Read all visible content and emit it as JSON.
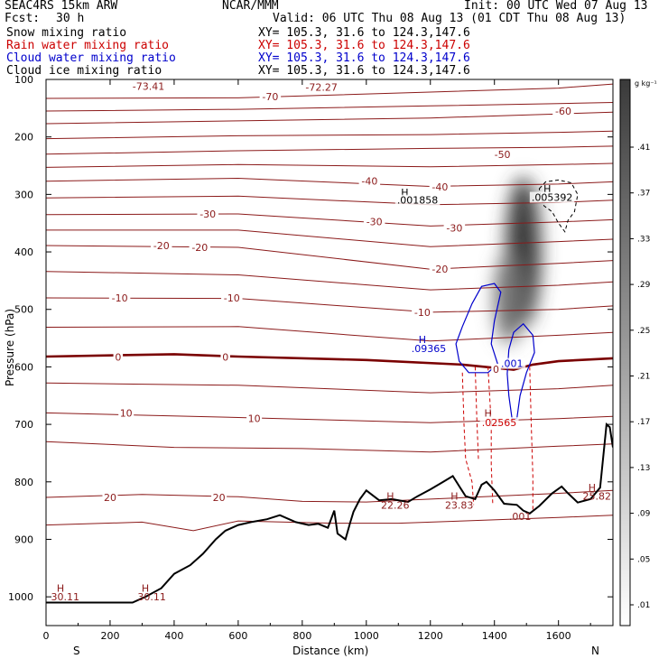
{
  "header": {
    "model": "SEAC4RS 15km ARW",
    "source": "NCAR/MMM",
    "init": "Init: 00 UTC Wed 07 Aug 13",
    "fcst_label": "Fcst:",
    "fcst_value": "30 h",
    "valid": "Valid: 06 UTC Thu 08 Aug 13 (01 CDT Thu 08 Aug 13)"
  },
  "legend": [
    {
      "name": "Snow mixing ratio",
      "xy": "XY= 105.3, 31.6 to 124.3,147.6",
      "color": "#000000"
    },
    {
      "name": "Rain water mixing ratio",
      "xy": "XY= 105.3, 31.6 to 124.3,147.6",
      "color": "#cc0000"
    },
    {
      "name": "Cloud water mixing ratio",
      "xy": "XY= 105.3, 31.6 to 124.3,147.6",
      "color": "#0000cc"
    },
    {
      "name": "Cloud ice mixing ratio",
      "xy": "XY= 105.3, 31.6 to 124.3,147.6",
      "color": "#000000"
    }
  ],
  "colors": {
    "temperature_contour": "#8b1a1a",
    "zero_isotherm": "#7a0000",
    "rain": "#cc0000",
    "cloud_water": "#0000cc",
    "terrain": "#000000"
  },
  "chart_data": {
    "type": "heatmap",
    "xlabel": "Distance (km)",
    "ylabel": "Pressure (hPa)",
    "xlim": [
      0,
      1770
    ],
    "ylim": [
      1050,
      100
    ],
    "x_ticks": [
      0,
      200,
      400,
      600,
      800,
      1000,
      1200,
      1400,
      1600
    ],
    "y_ticks": [
      100,
      200,
      300,
      400,
      500,
      600,
      700,
      800,
      900,
      1000
    ],
    "left_end_label": "S",
    "right_end_label": "N",
    "colorbar": {
      "unit": "g kg⁻¹",
      "ticks": [
        ".41",
        ".37",
        ".33",
        ".29",
        ".25",
        ".21",
        ".17",
        ".13",
        ".09",
        ".05",
        ".01"
      ],
      "max_value": 0.43
    },
    "temperature_labels": [
      {
        "text": "-73.41",
        "x": 320,
        "p": 112
      },
      {
        "text": "-72.27",
        "x": 860,
        "p": 113
      },
      {
        "text": "-70",
        "x": 700,
        "p": 130
      },
      {
        "text": "-60",
        "x": 1615,
        "p": 155
      },
      {
        "text": "-50",
        "x": 1425,
        "p": 230
      },
      {
        "text": "-40",
        "x": 1010,
        "p": 277
      },
      {
        "text": "-40",
        "x": 1230,
        "p": 287
      },
      {
        "text": "-30",
        "x": 505,
        "p": 334
      },
      {
        "text": "-30",
        "x": 1025,
        "p": 347
      },
      {
        "text": "-30",
        "x": 1275,
        "p": 358
      },
      {
        "text": "-20",
        "x": 360,
        "p": 389
      },
      {
        "text": "-20",
        "x": 480,
        "p": 392
      },
      {
        "text": "-20",
        "x": 1230,
        "p": 430
      },
      {
        "text": "-10",
        "x": 230,
        "p": 480
      },
      {
        "text": "-10",
        "x": 580,
        "p": 480
      },
      {
        "text": "-10",
        "x": 1175,
        "p": 505
      },
      {
        "text": "0",
        "x": 225,
        "p": 583
      },
      {
        "text": "0",
        "x": 560,
        "p": 583
      },
      {
        "text": "0",
        "x": 1405,
        "p": 604
      },
      {
        "text": "10",
        "x": 250,
        "p": 680
      },
      {
        "text": "10",
        "x": 650,
        "p": 690
      },
      {
        "text": "10",
        "x": 1400,
        "p": 697
      },
      {
        "text": "20",
        "x": 200,
        "p": 827
      },
      {
        "text": "20",
        "x": 540,
        "p": 827
      }
    ],
    "temperature_contours": [
      {
        "label": -70,
        "pts": [
          [
            0,
            133
          ],
          [
            600,
            132
          ],
          [
            1200,
            122
          ],
          [
            1600,
            115
          ],
          [
            1770,
            108
          ]
        ]
      },
      {
        "label": -65,
        "pts": [
          [
            0,
            155
          ],
          [
            600,
            152
          ],
          [
            1200,
            146
          ],
          [
            1600,
            142
          ],
          [
            1770,
            140
          ]
        ]
      },
      {
        "label": -60,
        "pts": [
          [
            0,
            177
          ],
          [
            600,
            172
          ],
          [
            1200,
            167
          ],
          [
            1600,
            160
          ],
          [
            1770,
            157
          ]
        ]
      },
      {
        "label": -55,
        "pts": [
          [
            0,
            203
          ],
          [
            600,
            198
          ],
          [
            1200,
            196
          ],
          [
            1600,
            192
          ],
          [
            1770,
            190
          ]
        ]
      },
      {
        "label": -50,
        "pts": [
          [
            0,
            230
          ],
          [
            600,
            224
          ],
          [
            1200,
            220
          ],
          [
            1600,
            218
          ],
          [
            1770,
            216
          ]
        ]
      },
      {
        "label": -45,
        "pts": [
          [
            0,
            253
          ],
          [
            600,
            248
          ],
          [
            1200,
            252
          ],
          [
            1600,
            248
          ],
          [
            1770,
            246
          ]
        ]
      },
      {
        "label": -40,
        "pts": [
          [
            0,
            277
          ],
          [
            600,
            272
          ],
          [
            1200,
            286
          ],
          [
            1600,
            282
          ],
          [
            1770,
            278
          ]
        ]
      },
      {
        "label": -35,
        "pts": [
          [
            0,
            306
          ],
          [
            600,
            303
          ],
          [
            1200,
            318
          ],
          [
            1600,
            314
          ],
          [
            1770,
            310
          ]
        ]
      },
      {
        "label": -30,
        "pts": [
          [
            0,
            335
          ],
          [
            600,
            334
          ],
          [
            1200,
            355
          ],
          [
            1600,
            348
          ],
          [
            1770,
            344
          ]
        ]
      },
      {
        "label": -25,
        "pts": [
          [
            0,
            362
          ],
          [
            600,
            362
          ],
          [
            1200,
            391
          ],
          [
            1600,
            382
          ],
          [
            1770,
            378
          ]
        ]
      },
      {
        "label": -20,
        "pts": [
          [
            0,
            389
          ],
          [
            600,
            392
          ],
          [
            1200,
            430
          ],
          [
            1600,
            420
          ],
          [
            1770,
            415
          ]
        ]
      },
      {
        "label": -15,
        "pts": [
          [
            0,
            434
          ],
          [
            600,
            440
          ],
          [
            1200,
            466
          ],
          [
            1600,
            458
          ],
          [
            1770,
            452
          ]
        ]
      },
      {
        "label": -10,
        "pts": [
          [
            0,
            480
          ],
          [
            600,
            481
          ],
          [
            1200,
            505
          ],
          [
            1600,
            500
          ],
          [
            1770,
            494
          ]
        ]
      },
      {
        "label": -5,
        "pts": [
          [
            0,
            531
          ],
          [
            600,
            530
          ],
          [
            1200,
            555
          ],
          [
            1600,
            545
          ],
          [
            1770,
            540
          ]
        ]
      },
      {
        "label": 0,
        "pts": [
          [
            0,
            582
          ],
          [
            400,
            578
          ],
          [
            600,
            582
          ],
          [
            1000,
            588
          ],
          [
            1300,
            596
          ],
          [
            1460,
            605
          ],
          [
            1520,
            596
          ],
          [
            1600,
            590
          ],
          [
            1770,
            585
          ]
        ]
      },
      {
        "label": 5,
        "pts": [
          [
            0,
            628
          ],
          [
            600,
            632
          ],
          [
            1200,
            645
          ],
          [
            1600,
            638
          ],
          [
            1770,
            632
          ]
        ]
      },
      {
        "label": 10,
        "pts": [
          [
            0,
            680
          ],
          [
            600,
            688
          ],
          [
            1200,
            697
          ],
          [
            1600,
            690
          ],
          [
            1770,
            686
          ]
        ]
      },
      {
        "label": 15,
        "pts": [
          [
            0,
            730
          ],
          [
            400,
            740
          ],
          [
            800,
            742
          ],
          [
            1200,
            748
          ],
          [
            1600,
            738
          ],
          [
            1770,
            734
          ]
        ]
      },
      {
        "label": 20,
        "pts": [
          [
            0,
            827
          ],
          [
            300,
            822
          ],
          [
            600,
            826
          ],
          [
            800,
            834
          ],
          [
            1000,
            835
          ],
          [
            1200,
            830
          ],
          [
            1600,
            820
          ],
          [
            1770,
            815
          ]
        ]
      },
      {
        "label": 25,
        "pts": [
          [
            0,
            875
          ],
          [
            300,
            870
          ],
          [
            460,
            885
          ],
          [
            600,
            868
          ],
          [
            900,
            872
          ],
          [
            1100,
            872
          ],
          [
            1300,
            868
          ],
          [
            1600,
            862
          ],
          [
            1770,
            858
          ]
        ]
      }
    ],
    "terrain": [
      [
        0,
        1010
      ],
      [
        270,
        1010
      ],
      [
        310,
        1000
      ],
      [
        360,
        985
      ],
      [
        400,
        960
      ],
      [
        450,
        945
      ],
      [
        490,
        925
      ],
      [
        530,
        900
      ],
      [
        560,
        885
      ],
      [
        600,
        875
      ],
      [
        640,
        870
      ],
      [
        690,
        865
      ],
      [
        730,
        858
      ],
      [
        780,
        870
      ],
      [
        820,
        875
      ],
      [
        850,
        873
      ],
      [
        880,
        880
      ],
      [
        900,
        850
      ],
      [
        910,
        890
      ],
      [
        935,
        900
      ],
      [
        950,
        870
      ],
      [
        960,
        852
      ],
      [
        980,
        830
      ],
      [
        1000,
        815
      ],
      [
        1040,
        832
      ],
      [
        1080,
        830
      ],
      [
        1130,
        835
      ],
      [
        1160,
        825
      ],
      [
        1200,
        813
      ],
      [
        1240,
        800
      ],
      [
        1270,
        790
      ],
      [
        1310,
        825
      ],
      [
        1340,
        830
      ],
      [
        1360,
        805
      ],
      [
        1375,
        800
      ],
      [
        1400,
        815
      ],
      [
        1430,
        838
      ],
      [
        1470,
        840
      ],
      [
        1490,
        850
      ],
      [
        1510,
        855
      ],
      [
        1540,
        842
      ],
      [
        1580,
        820
      ],
      [
        1610,
        808
      ],
      [
        1630,
        820
      ],
      [
        1660,
        836
      ],
      [
        1700,
        830
      ],
      [
        1730,
        810
      ],
      [
        1750,
        700
      ],
      [
        1760,
        705
      ],
      [
        1770,
        740
      ]
    ],
    "max_labels": [
      {
        "text": "30.11",
        "x": 60,
        "p": 1000
      },
      {
        "text": "30.11",
        "x": 330,
        "p": 1000
      },
      {
        "text": "22.26",
        "x": 1090,
        "p": 840
      },
      {
        "text": "23.83",
        "x": 1290,
        "p": 840
      },
      {
        "text": "25.82",
        "x": 1720,
        "p": 825
      },
      {
        "text": ".001",
        "x": 1480,
        "p": 860
      }
    ],
    "h_markers": [
      {
        "x": 45,
        "p": 985,
        "color": "#8b1a1a"
      },
      {
        "x": 310,
        "p": 985,
        "color": "#8b1a1a"
      },
      {
        "x": 1075,
        "p": 825,
        "color": "#8b1a1a"
      },
      {
        "x": 1275,
        "p": 825,
        "color": "#8b1a1a"
      },
      {
        "x": 1380,
        "p": 680,
        "color": "#8b1a1a"
      },
      {
        "x": 1705,
        "p": 810,
        "color": "#8b1a1a"
      },
      {
        "x": 1120,
        "p": 296,
        "color": "#000000"
      },
      {
        "x": 1565,
        "p": 290,
        "color": "#000000"
      },
      {
        "x": 1175,
        "p": 552,
        "color": "#0000cc"
      }
    ],
    "annotations": [
      {
        "text": ".001858",
        "x": 1160,
        "p": 310,
        "color": "#000000"
      },
      {
        "text": ".005392",
        "x": 1580,
        "p": 305,
        "color": "#000000"
      },
      {
        "text": ".09365",
        "x": 1195,
        "p": 568,
        "color": "#0000cc"
      },
      {
        "text": ".001",
        "x": 1455,
        "p": 594,
        "color": "#0000cc"
      },
      {
        "text": ".02565",
        "x": 1415,
        "p": 697,
        "color": "#cc0000"
      }
    ],
    "snow_field": [
      {
        "x": 1490,
        "p": 400,
        "rx": 55,
        "rp": 130,
        "v": 0.42
      },
      {
        "x": 1445,
        "p": 480,
        "rx": 45,
        "rp": 80,
        "v": 0.3
      }
    ],
    "cloud_water_contours": [
      [
        [
          1280,
          560
        ],
        [
          1300,
          530
        ],
        [
          1330,
          490
        ],
        [
          1360,
          460
        ],
        [
          1400,
          455
        ],
        [
          1420,
          470
        ],
        [
          1400,
          520
        ],
        [
          1390,
          560
        ],
        [
          1410,
          595
        ],
        [
          1380,
          610
        ],
        [
          1320,
          610
        ],
        [
          1290,
          590
        ]
      ],
      [
        [
          1440,
          612
        ],
        [
          1445,
          570
        ],
        [
          1460,
          540
        ],
        [
          1490,
          525
        ],
        [
          1520,
          545
        ],
        [
          1525,
          575
        ],
        [
          1500,
          610
        ],
        [
          1480,
          650
        ],
        [
          1470,
          690
        ],
        [
          1455,
          690
        ],
        [
          1445,
          650
        ]
      ]
    ],
    "cloud_ice_contours": [
      [
        [
          1540,
          290
        ],
        [
          1560,
          278
        ],
        [
          1600,
          275
        ],
        [
          1640,
          280
        ],
        [
          1660,
          300
        ],
        [
          1650,
          330
        ],
        [
          1630,
          345
        ],
        [
          1620,
          365
        ],
        [
          1600,
          350
        ],
        [
          1580,
          330
        ],
        [
          1555,
          320
        ],
        [
          1545,
          305
        ]
      ]
    ],
    "rain_lines": [
      [
        [
          1300,
          610
        ],
        [
          1305,
          700
        ],
        [
          1310,
          760
        ],
        [
          1330,
          800
        ],
        [
          1335,
          840
        ]
      ],
      [
        [
          1340,
          600
        ],
        [
          1345,
          690
        ],
        [
          1350,
          760
        ]
      ],
      [
        [
          1380,
          600
        ],
        [
          1390,
          700
        ],
        [
          1390,
          770
        ],
        [
          1395,
          840
        ]
      ],
      [
        [
          1510,
          600
        ],
        [
          1515,
          700
        ],
        [
          1520,
          790
        ],
        [
          1520,
          850
        ]
      ]
    ]
  }
}
